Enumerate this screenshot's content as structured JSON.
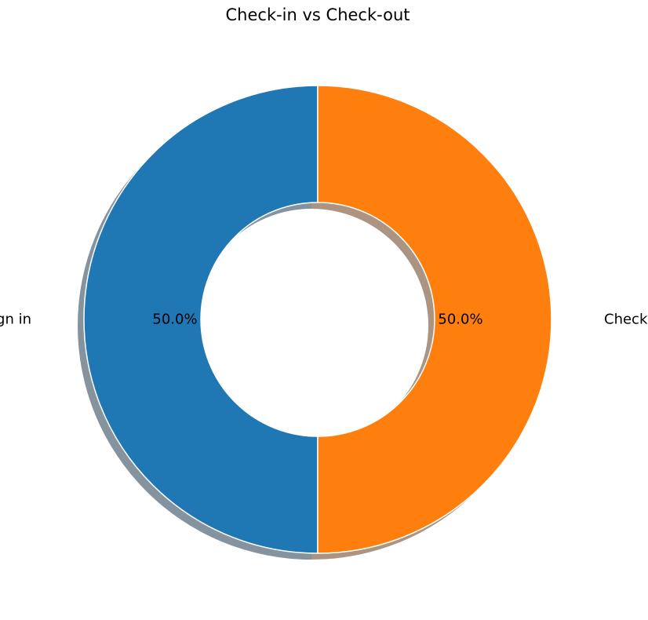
{
  "chart_data": {
    "type": "pie",
    "title": "Check-in vs Check-out",
    "donut": true,
    "shadow": true,
    "start_angle": "top",
    "direction": "counterclockwise",
    "slices": [
      {
        "label": "Sign in",
        "value": 50,
        "percent_label": "50.0%",
        "color": "#1f77b4"
      },
      {
        "label": "Check in",
        "value": 50,
        "percent_label": "50.0%",
        "color": "#ff7f0e"
      }
    ],
    "edge_color": "#ffffff"
  }
}
